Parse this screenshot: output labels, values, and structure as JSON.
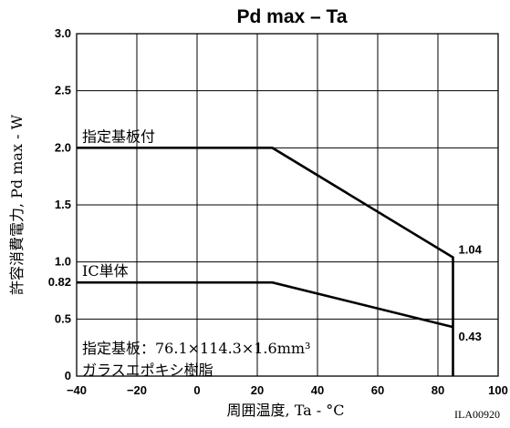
{
  "chart_data": {
    "type": "line",
    "title": "Pd max  –  Ta",
    "xlabel": "周囲温度, Ta - °C",
    "ylabel": "許容消費電力, Pd max - W",
    "xlim": [
      -40,
      100
    ],
    "ylim": [
      0,
      3.0
    ],
    "x_ticks": [
      "−40",
      "−20",
      "0",
      "20",
      "40",
      "60",
      "80",
      "100"
    ],
    "y_ticks": [
      "0",
      "0.5",
      "1.0",
      "1.5",
      "2.0",
      "2.5",
      "3.0"
    ],
    "y_extra_ticks": [
      "0.82"
    ],
    "grid": true,
    "series": [
      {
        "name": "指定基板付",
        "x": [
          -40,
          25,
          85,
          85
        ],
        "y": [
          2.0,
          2.0,
          1.04,
          0
        ],
        "end_label": "1.04"
      },
      {
        "name": "IC単体",
        "x": [
          -40,
          25,
          85
        ],
        "y": [
          0.82,
          0.82,
          0.43
        ],
        "end_label": "0.43"
      }
    ],
    "annotations": [
      "指定基板：76.1×114.3×1.6mm³",
      "ガラスエポキシ樹脂"
    ],
    "figure_code": "ILA00920"
  }
}
